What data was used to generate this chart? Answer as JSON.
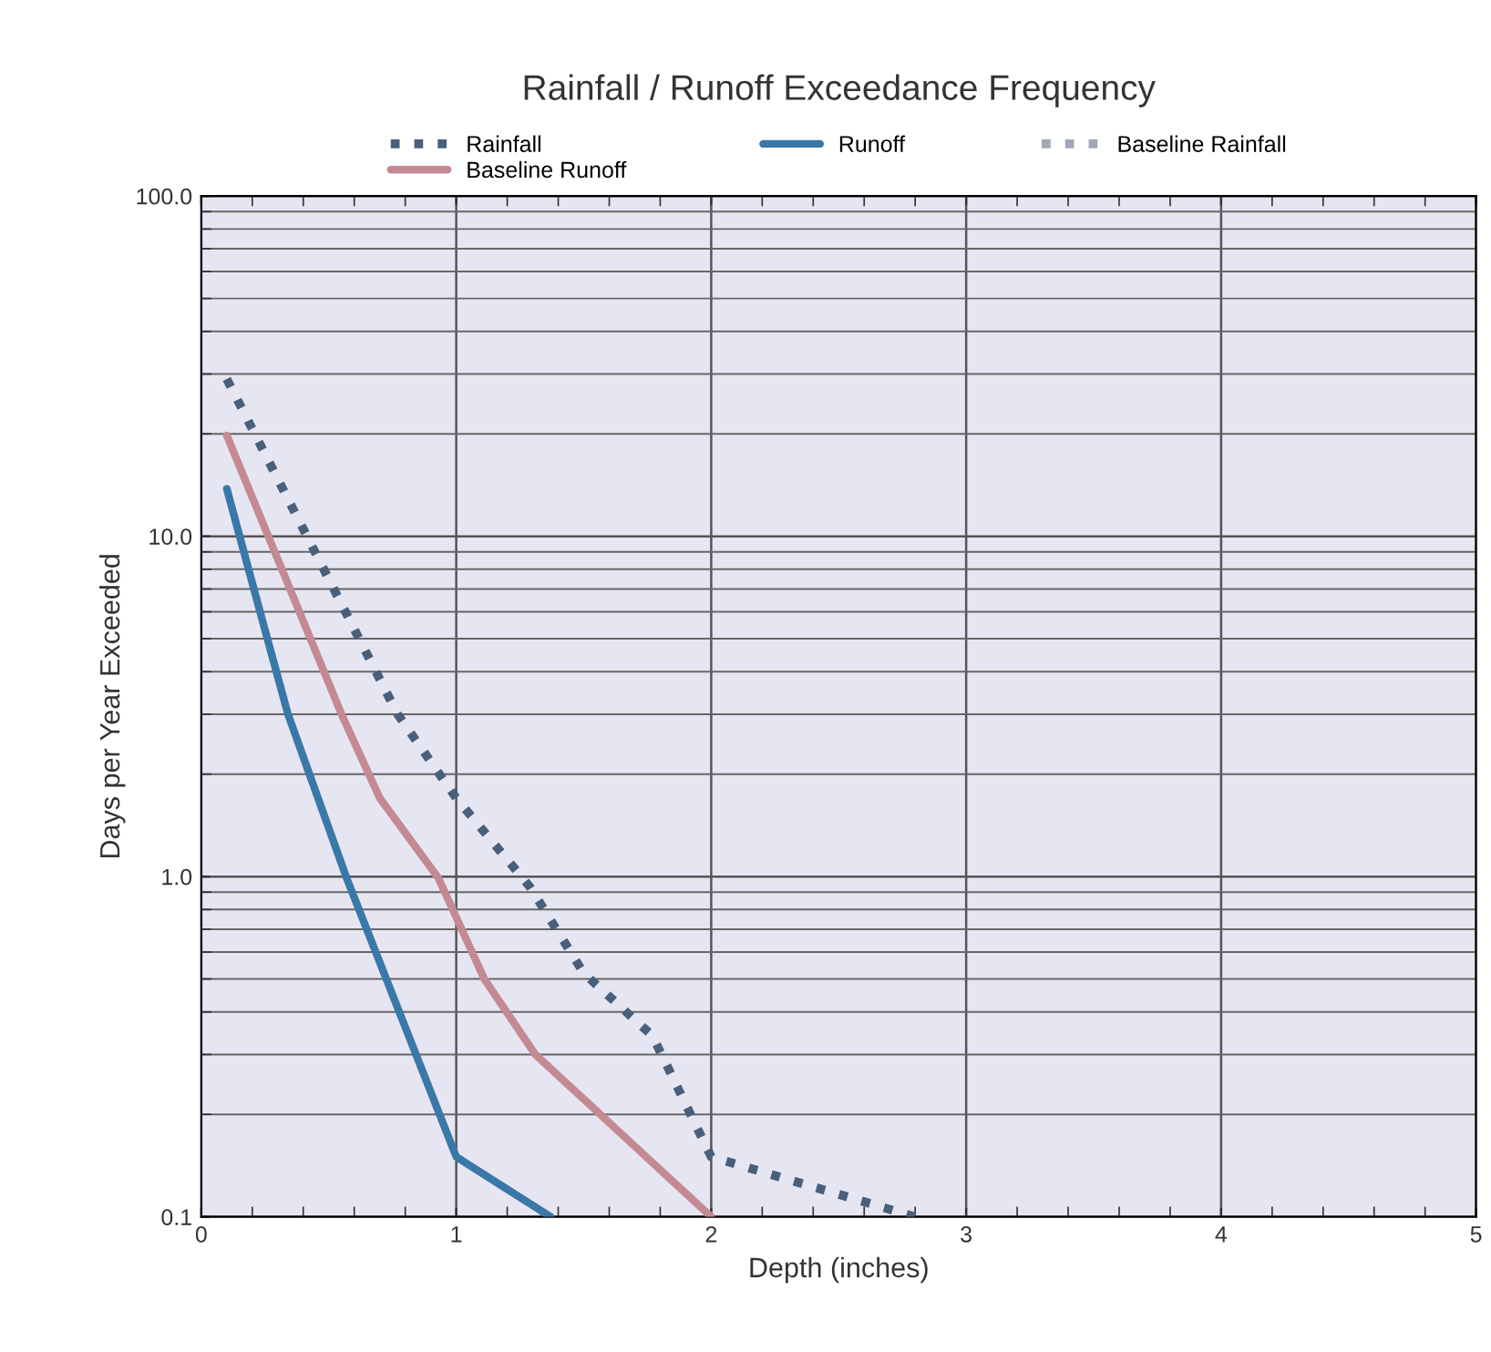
{
  "chart_data": {
    "type": "line",
    "title": "Rainfall / Runoff Exceedance Frequency",
    "xlabel": "Depth (inches)",
    "ylabel": "Days per Year Exceeded",
    "log": "y",
    "xlim": [
      0,
      5
    ],
    "xticks": [
      0,
      1,
      2,
      3,
      4,
      5
    ],
    "ylim": [
      0.1,
      100
    ],
    "yticks": [
      {
        "value": 0.1,
        "label": "0.1"
      },
      {
        "value": 1,
        "label": "1.0"
      },
      {
        "value": 10,
        "label": "10.0"
      },
      {
        "value": 100,
        "label": "100.0"
      }
    ],
    "grid": true,
    "legend": "top",
    "marker": "none",
    "series": [
      {
        "name": "Rainfall",
        "color": "#4a5f7a",
        "line_style": "dotted",
        "x": [
          0.1,
          0.77,
          1.0,
          1.29,
          1.5,
          1.77,
          2.0,
          2.8
        ],
        "values": [
          29,
          3.0,
          1.7,
          0.93,
          0.52,
          0.34,
          0.15,
          0.1
        ]
      },
      {
        "name": "Runoff",
        "color": "#3a78a8",
        "line_style": "solid",
        "x": [
          0.1,
          0.25,
          0.34,
          0.57,
          1.0,
          1.37
        ],
        "values": [
          13.8,
          5.3,
          3.0,
          0.99,
          0.15,
          0.1
        ]
      },
      {
        "name": "Baseline Rainfall",
        "color": "#a0a8b8",
        "line_style": "dotted"
      },
      {
        "name": "Baseline Runoff",
        "color": "#c48a94",
        "line_style": "solid",
        "x": [
          0.1,
          0.55,
          0.7,
          0.93,
          1.11,
          1.31,
          2.0
        ],
        "values": [
          19.8,
          3.0,
          1.7,
          0.99,
          0.5,
          0.3,
          0.1
        ]
      }
    ]
  }
}
